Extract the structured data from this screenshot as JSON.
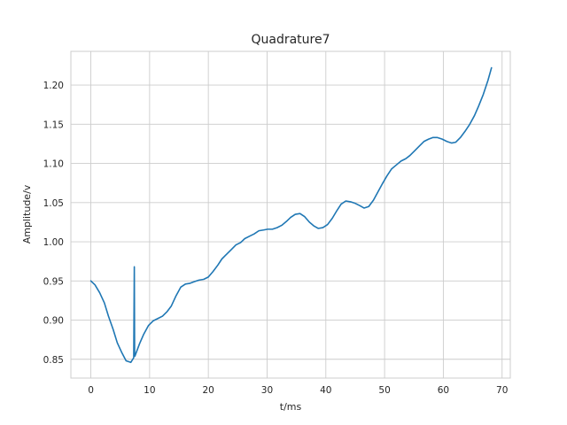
{
  "chart_data": {
    "type": "line",
    "title": "Quadrature7",
    "xlabel": "t/ms",
    "ylabel": "Amplitude/v",
    "xlim": [
      -3.4,
      71.4
    ],
    "ylim": [
      0.826,
      1.243
    ],
    "xticks": [
      0,
      10,
      20,
      30,
      40,
      50,
      60,
      70
    ],
    "xtick_labels": [
      "0",
      "10",
      "20",
      "30",
      "40",
      "50",
      "60",
      "70"
    ],
    "yticks": [
      0.85,
      0.9,
      0.95,
      1.0,
      1.05,
      1.1,
      1.15,
      1.2
    ],
    "ytick_labels": [
      "0.85",
      "0.90",
      "0.95",
      "1.00",
      "1.05",
      "1.10",
      "1.15",
      "1.20"
    ],
    "grid": true,
    "series": [
      {
        "color": "#1f77b4",
        "x": [
          0,
          0.7,
          1.5,
          2.3,
          3.0,
          3.8,
          4.5,
          5.3,
          6.0,
          6.8,
          7.3,
          7.4,
          7.45,
          7.5,
          7.7,
          8.3,
          9.0,
          9.8,
          10.6,
          11.4,
          12.2,
          13.0,
          13.7,
          14.5,
          15.3,
          16.1,
          16.9,
          17.6,
          18.4,
          19.2,
          20.0,
          20.8,
          21.6,
          22.3,
          23.1,
          23.9,
          24.7,
          25.5,
          26.2,
          27.0,
          27.8,
          28.6,
          29.4,
          30.1,
          30.9,
          31.7,
          32.5,
          33.3,
          34.0,
          34.8,
          35.6,
          36.4,
          37.2,
          38.0,
          38.7,
          39.5,
          40.3,
          41.1,
          41.9,
          42.6,
          43.4,
          44.2,
          45.0,
          45.8,
          46.5,
          47.3,
          48.1,
          48.9,
          49.7,
          50.4,
          51.2,
          52.0,
          52.8,
          53.6,
          54.3,
          55.1,
          55.9,
          56.7,
          57.5,
          58.2,
          59.0,
          59.8,
          60.6,
          61.4,
          62.1,
          62.9,
          63.7,
          64.5,
          65.3,
          66.0,
          66.8,
          67.6,
          68.2
        ],
        "y": [
          0.95,
          0.945,
          0.935,
          0.922,
          0.905,
          0.888,
          0.871,
          0.858,
          0.848,
          0.846,
          0.852,
          0.968,
          0.858,
          0.854,
          0.858,
          0.87,
          0.882,
          0.893,
          0.899,
          0.902,
          0.905,
          0.911,
          0.918,
          0.931,
          0.942,
          0.946,
          0.947,
          0.949,
          0.951,
          0.952,
          0.955,
          0.962,
          0.97,
          0.978,
          0.984,
          0.99,
          0.996,
          0.999,
          1.004,
          1.007,
          1.01,
          1.014,
          1.015,
          1.016,
          1.016,
          1.018,
          1.021,
          1.026,
          1.031,
          1.035,
          1.036,
          1.032,
          1.025,
          1.02,
          1.017,
          1.018,
          1.022,
          1.03,
          1.04,
          1.048,
          1.052,
          1.051,
          1.049,
          1.046,
          1.043,
          1.045,
          1.053,
          1.064,
          1.075,
          1.084,
          1.093,
          1.098,
          1.103,
          1.106,
          1.11,
          1.116,
          1.122,
          1.128,
          1.131,
          1.133,
          1.133,
          1.131,
          1.128,
          1.126,
          1.127,
          1.133,
          1.141,
          1.15,
          1.161,
          1.173,
          1.188,
          1.206,
          1.222
        ]
      }
    ]
  }
}
